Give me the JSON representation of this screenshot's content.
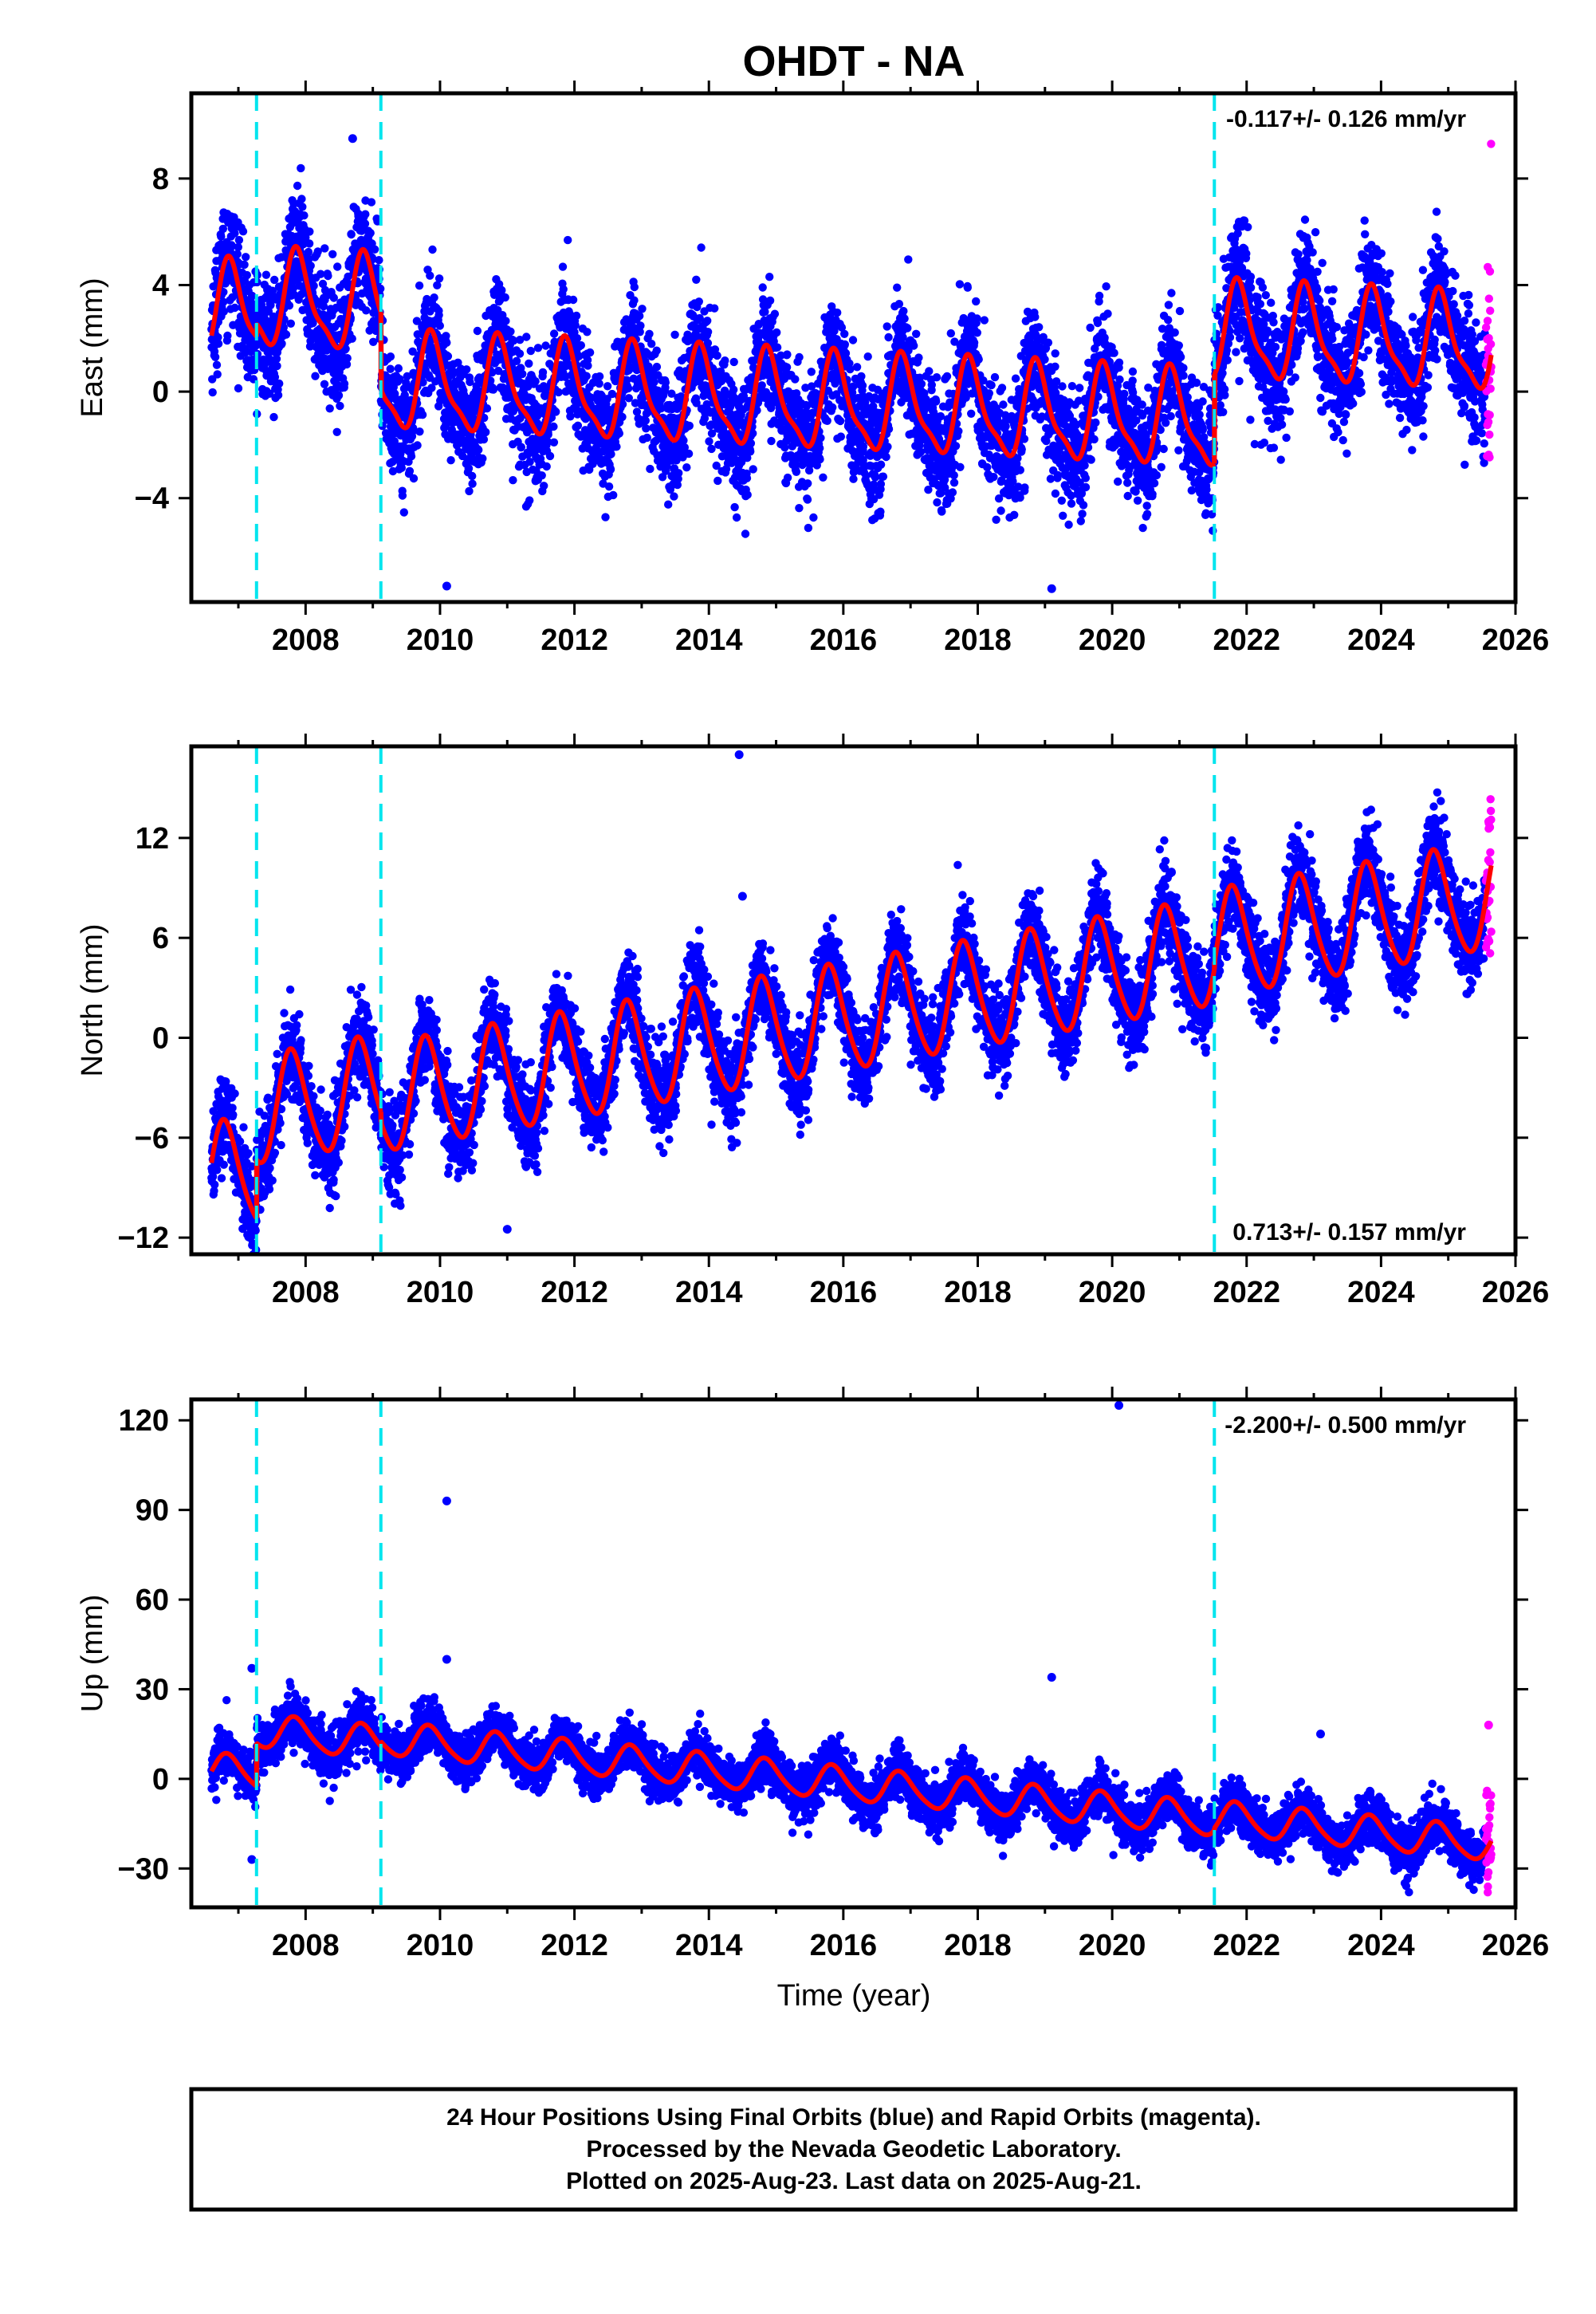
{
  "figure": {
    "title": "OHDT - NA",
    "xlabel": "Time (year)",
    "footer": [
      "24 Hour Positions Using Final Orbits (blue) and Rapid Orbits (magenta).",
      "Processed by the Nevada Geodetic Laboratory.",
      "Plotted on 2025-Aug-23. Last data on 2025-Aug-21."
    ],
    "colors": {
      "final_orbits": "#0000ff",
      "rapid_orbits": "#ff00ff",
      "model_fit": "#ff0000",
      "steps": "#00e5ee"
    }
  },
  "chart_data": [
    {
      "type": "scatter",
      "ylabel": "East (mm)",
      "xlim": [
        2006.3,
        2026.0
      ],
      "ylim": [
        -7.9,
        11.2
      ],
      "xticks": [
        2008,
        2010,
        2012,
        2014,
        2016,
        2018,
        2020,
        2022,
        2024,
        2026
      ],
      "yticks": [
        -4,
        0,
        4,
        8
      ],
      "rate_label": "-0.117+/- 0.126 mm/yr",
      "rate_position": "top-right",
      "steps": [
        2007.27,
        2009.12,
        2021.52
      ],
      "segments": [
        {
          "x0": 2006.6,
          "x1": 2007.27,
          "y0": 3.0,
          "slope": -0.117
        },
        {
          "x0": 2007.27,
          "x1": 2009.12,
          "y0": 3.4,
          "slope": -0.117
        },
        {
          "x0": 2009.12,
          "x1": 2021.52,
          "y0": 0.3,
          "slope": -0.117
        },
        {
          "x0": 2021.52,
          "x1": 2025.64,
          "y0": 2.2,
          "slope": -0.117
        }
      ],
      "seasonal": {
        "amp1": 1.7,
        "phase1": 0.64,
        "amp2": 0.5,
        "phase2": 0.2
      },
      "scatter_sigma": 1.1,
      "series": [
        {
          "name": "Final Orbits",
          "color": "#0000ff",
          "x_range": [
            2006.6,
            2025.55
          ]
        },
        {
          "name": "Rapid Orbits",
          "color": "#ff00ff",
          "x_range": [
            2025.56,
            2025.64
          ]
        }
      ],
      "outliers": [
        {
          "x": 2010.1,
          "y": -7.3
        },
        {
          "x": 2008.7,
          "y": 9.5
        },
        {
          "x": 2019.1,
          "y": -7.4
        }
      ]
    },
    {
      "type": "scatter",
      "ylabel": "North (mm)",
      "xlim": [
        2006.3,
        2026.0
      ],
      "ylim": [
        -13.0,
        17.5
      ],
      "xticks": [
        2008,
        2010,
        2012,
        2014,
        2016,
        2018,
        2020,
        2022,
        2024,
        2026
      ],
      "yticks": [
        -12,
        -6,
        0,
        6,
        12
      ],
      "rate_label": "0.713+/- 0.157 mm/yr",
      "rate_position": "bottom-right",
      "steps": [
        2007.27,
        2009.12,
        2021.52
      ],
      "segments": [
        {
          "x0": 2006.6,
          "x1": 2007.27,
          "y0": -8.5,
          "slope": 0.713
        },
        {
          "x0": 2007.27,
          "x1": 2009.12,
          "y0": -4.5,
          "slope": 0.713
        },
        {
          "x0": 2009.12,
          "x1": 2021.52,
          "y0": -3.8,
          "slope": 0.713
        },
        {
          "x0": 2021.52,
          "x1": 2025.64,
          "y0": 5.5,
          "slope": 0.713
        }
      ],
      "seasonal": {
        "amp1": 3.2,
        "phase1": 0.55,
        "amp2": 0.4,
        "phase2": 0.1
      },
      "scatter_sigma": 1.3,
      "series": [
        {
          "name": "Final Orbits",
          "color": "#0000ff",
          "x_range": [
            2006.6,
            2025.55
          ]
        },
        {
          "name": "Rapid Orbits",
          "color": "#ff00ff",
          "x_range": [
            2025.56,
            2025.64
          ]
        }
      ],
      "outliers": [
        {
          "x": 2014.45,
          "y": 17.0
        },
        {
          "x": 2014.5,
          "y": 8.5
        },
        {
          "x": 2011.0,
          "y": -11.5
        }
      ]
    },
    {
      "type": "scatter",
      "ylabel": "Up (mm)",
      "xlim": [
        2006.3,
        2026.0
      ],
      "ylim": [
        -43,
        127
      ],
      "xticks": [
        2008,
        2010,
        2012,
        2014,
        2016,
        2018,
        2020,
        2022,
        2024,
        2026
      ],
      "yticks": [
        -30,
        0,
        30,
        60,
        90,
        120
      ],
      "rate_label": "-2.200+/- 0.500 mm/yr",
      "rate_position": "top-right",
      "steps": [
        2007.27,
        2009.12,
        2021.52
      ],
      "segments": [
        {
          "x0": 2006.6,
          "x1": 2007.27,
          "y0": 3.0,
          "slope": -2.2
        },
        {
          "x0": 2007.27,
          "x1": 2009.12,
          "y0": 16.0,
          "slope": -2.2
        },
        {
          "x0": 2009.12,
          "x1": 2021.52,
          "y0": 13.5,
          "slope": -2.2
        },
        {
          "x0": 2021.52,
          "x1": 2025.64,
          "y0": -13.0,
          "slope": -2.2
        }
      ],
      "seasonal": {
        "amp1": 5.5,
        "phase1": 0.6,
        "amp2": 0.8,
        "phase2": 0.15
      },
      "scatter_sigma": 4.0,
      "series": [
        {
          "name": "Final Orbits",
          "color": "#0000ff",
          "x_range": [
            2006.6,
            2025.55
          ]
        },
        {
          "name": "Rapid Orbits",
          "color": "#ff00ff",
          "x_range": [
            2025.56,
            2025.64
          ]
        }
      ],
      "outliers": [
        {
          "x": 2020.1,
          "y": 125
        },
        {
          "x": 2010.1,
          "y": 93
        },
        {
          "x": 2010.1,
          "y": 40
        },
        {
          "x": 2019.1,
          "y": 34
        },
        {
          "x": 2007.2,
          "y": 37
        },
        {
          "x": 2007.2,
          "y": -27
        },
        {
          "x": 2023.1,
          "y": 15
        },
        {
          "x": 2025.6,
          "y": 18
        }
      ]
    }
  ]
}
